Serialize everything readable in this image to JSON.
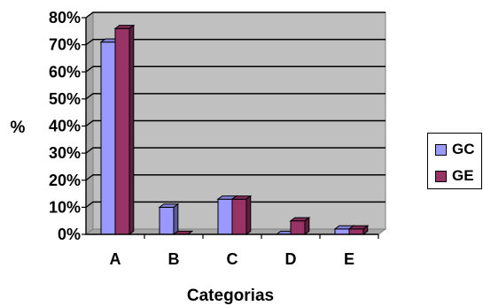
{
  "chart_data": {
    "type": "bar",
    "categories": [
      "A",
      "B",
      "C",
      "D",
      "E"
    ],
    "series": [
      {
        "name": "GC",
        "values": [
          71,
          10,
          13,
          0,
          2
        ],
        "color": "#9999ff"
      },
      {
        "name": "GE",
        "values": [
          76,
          0,
          13,
          5,
          2
        ],
        "color": "#993366"
      }
    ],
    "ylabel": "%",
    "xlabel": "Categorias",
    "ylim": [
      0,
      80
    ],
    "yticks": [
      "0%",
      "10%",
      "20%",
      "30%",
      "40%",
      "50%",
      "60%",
      "70%",
      "80%"
    ],
    "plot_background": "#c0c0c0",
    "grid": true,
    "style": "3d-clustered-bar",
    "legend_position": "right"
  }
}
